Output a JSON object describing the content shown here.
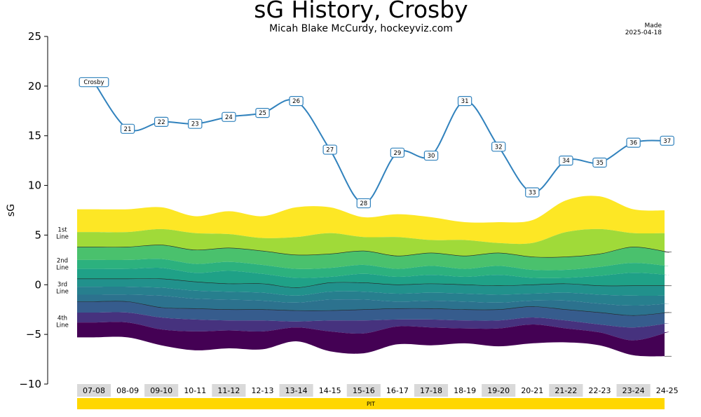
{
  "chart_data": {
    "type": "line",
    "title": "sG History, Crosby",
    "subtitle": "Micah Blake McCurdy, hockeyviz.com",
    "made_label": "Made",
    "made_date": "2025-04-18",
    "ylabel": "sG",
    "xlabel": "",
    "ylim": [
      -10,
      25
    ],
    "yticks": [
      -10,
      -5,
      0,
      5,
      10,
      15,
      20,
      25
    ],
    "yticklabels": [
      "−10",
      "−5",
      "0",
      "5",
      "10",
      "15",
      "20",
      "25"
    ],
    "grid": false,
    "seasons": [
      "07-08",
      "08-09",
      "09-10",
      "10-11",
      "11-12",
      "12-13",
      "13-14",
      "14-15",
      "15-16",
      "16-17",
      "17-18",
      "18-19",
      "19-20",
      "20-21",
      "21-22",
      "22-23",
      "23-24",
      "24-25"
    ],
    "season_shaded": [
      true,
      false,
      true,
      false,
      true,
      false,
      true,
      false,
      true,
      false,
      true,
      false,
      true,
      false,
      true,
      false,
      true,
      false
    ],
    "team": {
      "name": "PIT",
      "color": "#ffd700"
    },
    "series": [
      {
        "name": "Crosby",
        "color": "#3182bd",
        "x": [
          0,
          1,
          2,
          3,
          4,
          5,
          6,
          7,
          8,
          9,
          10,
          11,
          12,
          13,
          14,
          15,
          16,
          17
        ],
        "values": [
          20.4,
          15.7,
          16.4,
          16.2,
          16.9,
          17.3,
          18.5,
          13.6,
          8.2,
          13.3,
          13.0,
          18.5,
          13.9,
          9.3,
          12.5,
          12.3,
          14.3,
          14.5
        ],
        "labels": [
          "Crosby",
          "21",
          "22",
          "23",
          "24",
          "25",
          "26",
          "27",
          "28",
          "29",
          "30",
          "31",
          "32",
          "33",
          "34",
          "35",
          "36",
          "37"
        ]
      }
    ],
    "band_boundaries": [
      [
        7.6,
        7.6,
        7.8,
        6.9,
        7.4,
        6.9,
        7.8,
        7.8,
        6.8,
        7.1,
        6.8,
        6.3,
        6.3,
        6.5,
        8.5,
        8.9,
        7.6,
        7.5
      ],
      [
        5.3,
        5.3,
        5.6,
        5.2,
        5.1,
        4.7,
        4.8,
        5.2,
        4.8,
        4.8,
        4.5,
        4.5,
        4.2,
        4.2,
        5.3,
        5.6,
        5.2,
        5.2
      ],
      [
        3.8,
        3.8,
        4.0,
        3.5,
        3.7,
        3.4,
        3.0,
        3.1,
        3.4,
        2.9,
        3.2,
        2.9,
        3.2,
        2.8,
        2.8,
        3.1,
        3.8,
        3.3
      ],
      [
        2.5,
        2.5,
        2.6,
        2.1,
        2.3,
        2.0,
        1.6,
        1.7,
        2.0,
        1.6,
        1.9,
        1.6,
        1.9,
        1.5,
        1.5,
        1.8,
        2.2,
        1.9
      ],
      [
        1.6,
        1.6,
        1.7,
        1.2,
        1.4,
        1.1,
        0.7,
        0.8,
        1.1,
        0.8,
        1.0,
        0.8,
        1.0,
        0.7,
        0.7,
        0.9,
        1.2,
        1.0
      ],
      [
        0.6,
        0.6,
        0.6,
        0.3,
        0.1,
        0.1,
        -0.3,
        0.2,
        0.2,
        0.0,
        0.1,
        0.0,
        -0.1,
        0.0,
        0.1,
        -0.1,
        -0.1,
        -0.1
      ],
      [
        -0.2,
        -0.2,
        -0.3,
        -0.6,
        -0.7,
        -0.8,
        -1.1,
        -0.7,
        -0.7,
        -0.9,
        -0.8,
        -0.9,
        -1.0,
        -0.9,
        -0.8,
        -1.0,
        -1.1,
        -1.1
      ],
      [
        -1.0,
        -1.0,
        -1.1,
        -1.4,
        -1.5,
        -1.6,
        -1.8,
        -1.5,
        -1.5,
        -1.7,
        -1.6,
        -1.7,
        -1.8,
        -1.6,
        -1.6,
        -1.9,
        -2.1,
        -1.9
      ],
      [
        -1.7,
        -1.7,
        -2.3,
        -2.4,
        -2.5,
        -2.5,
        -2.6,
        -2.6,
        -2.5,
        -2.4,
        -2.4,
        -2.5,
        -2.5,
        -2.2,
        -2.5,
        -2.8,
        -3.1,
        -2.8
      ],
      [
        -2.8,
        -2.8,
        -3.3,
        -3.5,
        -3.6,
        -3.6,
        -3.7,
        -3.6,
        -3.6,
        -3.5,
        -3.5,
        -3.6,
        -3.6,
        -3.3,
        -3.6,
        -4.0,
        -4.3,
        -3.9
      ],
      [
        -3.8,
        -3.8,
        -4.5,
        -4.7,
        -4.6,
        -4.7,
        -4.3,
        -4.7,
        -4.9,
        -4.2,
        -4.3,
        -4.4,
        -4.4,
        -4.0,
        -4.4,
        -4.8,
        -5.6,
        -4.8
      ],
      [
        -5.3,
        -5.3,
        -6.1,
        -6.6,
        -6.4,
        -6.5,
        -5.7,
        -6.7,
        -6.9,
        -6.0,
        -6.1,
        -5.9,
        -6.2,
        -5.9,
        -5.8,
        -6.1,
        -7.1,
        -7.2
      ]
    ],
    "band_colors": [
      "#fde725",
      "#a0da39",
      "#4ac16d",
      "#1fa187",
      "#277f8e",
      "#365c8d",
      "#46327e",
      "#440154"
    ],
    "band_groups": [
      [
        0,
        2
      ],
      [
        2,
        5
      ],
      [
        5,
        8
      ],
      [
        8,
        11
      ]
    ],
    "band_group_fills": [
      [
        "#fde725",
        "#a0da39"
      ],
      [
        "#4ac16d",
        "#2cb17e",
        "#1fa187"
      ],
      [
        "#21918c",
        "#277f8e",
        "#2c728e"
      ],
      [
        "#365c8d",
        "#46327e",
        "#440154"
      ]
    ],
    "line_labels": [
      {
        "text": [
          "1st",
          "Line"
        ],
        "y": 5.2
      },
      {
        "text": [
          "2nd",
          "Line"
        ],
        "y": 2.1
      },
      {
        "text": [
          "3rd",
          "Line"
        ],
        "y": -0.3
      },
      {
        "text": [
          "4th",
          "Line"
        ],
        "y": -3.7
      }
    ],
    "right_ticks": [
      3.3,
      -0.1,
      -2.8,
      -7.2
    ]
  }
}
